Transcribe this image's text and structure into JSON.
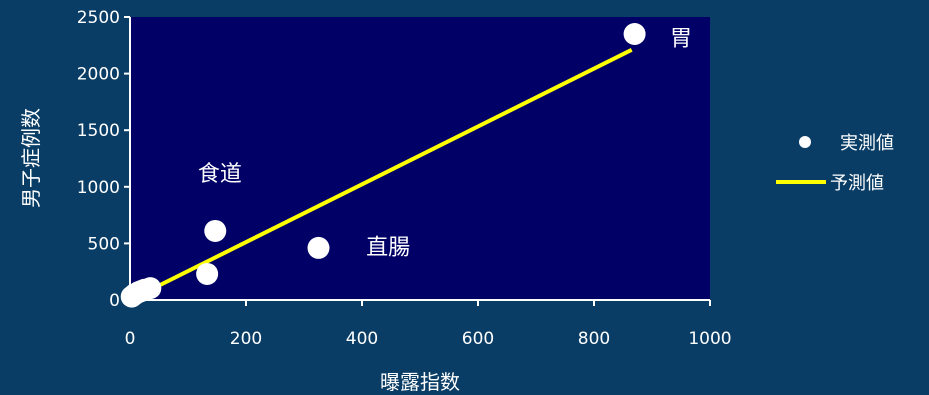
{
  "chart_data": {
    "type": "scatter",
    "title": "",
    "xlabel": "曝露指数",
    "ylabel": "男子症例数",
    "xlim": [
      0,
      1000
    ],
    "ylim": [
      0,
      2500
    ],
    "x_ticks": [
      0,
      200,
      400,
      600,
      800,
      1000
    ],
    "y_ticks": [
      0,
      500,
      1000,
      1500,
      2000,
      2500
    ],
    "grid": false,
    "legend_position": "right",
    "series": [
      {
        "name": "実測値",
        "kind": "scatter",
        "color": "#ffffff",
        "points": [
          {
            "x": 3,
            "y": 30
          },
          {
            "x": 8,
            "y": 50
          },
          {
            "x": 15,
            "y": 70
          },
          {
            "x": 20,
            "y": 80
          },
          {
            "x": 25,
            "y": 90
          },
          {
            "x": 35,
            "y": 105
          },
          {
            "x": 133,
            "y": 230
          },
          {
            "x": 147,
            "y": 610
          },
          {
            "x": 325,
            "y": 460
          },
          {
            "x": 870,
            "y": 2350
          }
        ]
      },
      {
        "name": "予測値",
        "kind": "line",
        "color": "#ffff00",
        "points": [
          {
            "x": 0,
            "y": 0
          },
          {
            "x": 865,
            "y": 2210
          }
        ]
      }
    ],
    "annotations": [
      {
        "text": "胃",
        "x": 950,
        "y": 2250
      },
      {
        "text": "食道",
        "x": 155,
        "y": 1050
      },
      {
        "text": "直腸",
        "x": 445,
        "y": 400
      }
    ],
    "colors": {
      "background": "#0a3d66",
      "plot_area": "#000066",
      "axis": "#ffffff"
    }
  }
}
